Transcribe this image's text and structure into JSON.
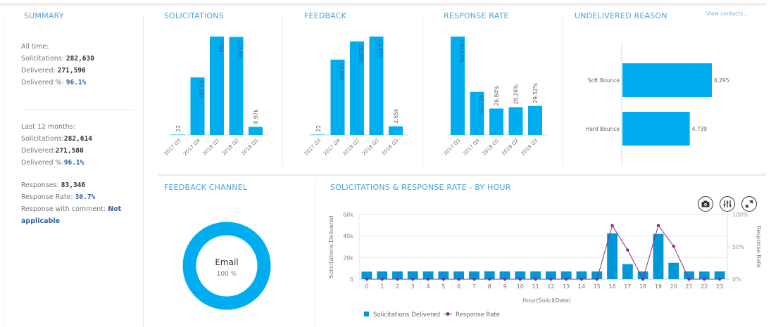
{
  "summary": {
    "title": "SUMMARY",
    "all_time": {
      "heading": "All time:",
      "solicitations_label": "Solicitations: ",
      "solicitations_value": "282,630",
      "delivered_label": "Delivered: ",
      "delivered_value": "271,596",
      "delivered_pct_label": "Delivered %: ",
      "delivered_pct_value": "96.1%"
    },
    "last_12_months": {
      "heading": "Last 12 months:",
      "solicitations_label": "Solicitations:",
      "solicitations_value": "282,614",
      "delivered_label": "Delivered:",
      "delivered_value": "271,580",
      "delivered_pct_label": "Delivered %:",
      "delivered_pct_value": "96.1%"
    },
    "responses": {
      "responses_label": "Responses: ",
      "responses_value": "83,346",
      "rate_label": "Response Rate: ",
      "rate_value": "30.7%",
      "comment_label": "Response with comment: ",
      "comment_value_1": "Not",
      "comment_value_2": "applicable"
    }
  },
  "undelivered": {
    "view_contacts_label": "View contacts..."
  },
  "hourly_toolbar": {
    "camera_icon": "camera-icon",
    "settings_icon": "sliders-icon",
    "expand_icon": "expand-icon"
  },
  "colors": {
    "bar": "#00adef",
    "bar_hourly": "#0097d7",
    "line": "#8b2f77",
    "title": "#4aa3df"
  },
  "chart_data": [
    {
      "id": "solicitations",
      "type": "bar",
      "title": "SOLICITATIONS",
      "categories": [
        "2017 Q3",
        "2017 Q4",
        "2018 Q1",
        "2018 Q2",
        "2018 Q3"
      ],
      "values": [
        22,
        63180,
        108000,
        107600,
        8970
      ],
      "labels": [
        "22",
        "63.18k",
        "108k",
        "107.6k",
        "8.97k"
      ],
      "ylim": [
        0,
        108000
      ]
    },
    {
      "id": "feedback",
      "type": "bar",
      "title": "FEEDBACK",
      "categories": [
        "2017 Q3",
        "2017 Q4",
        "2018 Q1",
        "2018 Q2",
        "2018 Q3"
      ],
      "values": [
        22,
        22860,
        28380,
        29850,
        2650
      ],
      "labels": [
        "22",
        "22.86k",
        "28.38k",
        "29.85k",
        "2.65k"
      ],
      "ylim": [
        0,
        29850
      ]
    },
    {
      "id": "response_rate",
      "type": "bar",
      "title": "RESPONSE RATE",
      "categories": [
        "2017 Q3",
        "2017 Q4",
        "2018 Q1",
        "2018 Q2",
        "2018 Q3"
      ],
      "values": [
        100.0,
        43.83,
        26.84,
        28.26,
        29.52
      ],
      "labels": [
        "100.00%",
        "43.83%",
        "26.84%",
        "28.26%",
        "29.52%"
      ],
      "ylim": [
        0,
        100
      ]
    },
    {
      "id": "undelivered_reason",
      "type": "bar",
      "orientation": "horizontal",
      "title": "UNDELIVERED REASON",
      "categories": [
        "Soft Bounce",
        "Hard Bounce"
      ],
      "values": [
        6295,
        4739
      ],
      "labels": [
        "6,295",
        "4,739"
      ]
    },
    {
      "id": "feedback_channel",
      "type": "pie",
      "title": "FEEDBACK CHANNEL",
      "categories": [
        "Email"
      ],
      "values": [
        100
      ],
      "labels": [
        "100 %"
      ]
    },
    {
      "id": "by_hour",
      "type": "bar",
      "title": "SOLICITATIONS & RESPONSE RATE - BY HOUR",
      "xlabel": "Hour(SolicitDate)",
      "ylabel": "Solicitations Delivered",
      "y2label": "Response Rate",
      "categories": [
        "0",
        "1",
        "2",
        "3",
        "4",
        "5",
        "6",
        "7",
        "8",
        "9",
        "10",
        "11",
        "12",
        "13",
        "14",
        "15",
        "16",
        "17",
        "18",
        "19",
        "20",
        "21",
        "22",
        "23"
      ],
      "yticks": [
        "0",
        "20k",
        "40k",
        "60k"
      ],
      "y2ticks": [
        "0%",
        "50%",
        "100%"
      ],
      "ylim": [
        0,
        60000
      ],
      "y2lim": [
        0,
        100
      ],
      "legend": [
        "Solicitations Delivered",
        "Response Rate"
      ],
      "legend_position": "bottom-left",
      "series": [
        {
          "name": "Solicitations Delivered",
          "type": "bar",
          "values": [
            7000,
            7200,
            7200,
            7300,
            7200,
            7200,
            7200,
            7200,
            7300,
            7200,
            7200,
            7200,
            7200,
            7200,
            7200,
            7200,
            42500,
            14000,
            7200,
            42000,
            15200,
            7200,
            7100,
            7200
          ]
        },
        {
          "name": "Response Rate",
          "type": "line",
          "values": [
            0,
            0,
            0,
            0,
            0,
            0,
            0,
            0,
            0,
            0,
            0,
            0,
            0,
            0,
            0,
            0,
            83,
            45,
            0,
            83,
            51,
            0,
            0,
            0
          ]
        }
      ]
    }
  ]
}
